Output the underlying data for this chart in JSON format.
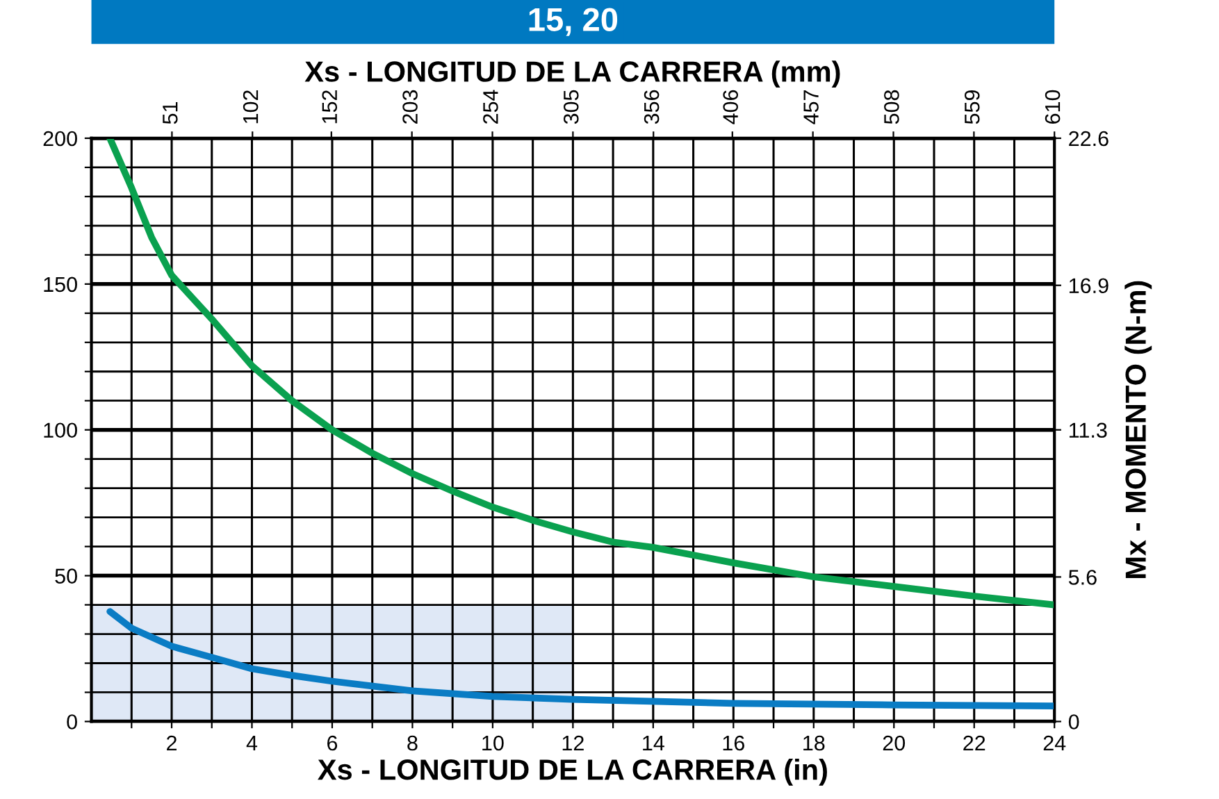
{
  "chart_data": {
    "type": "line",
    "title": "15, 20",
    "xlabel": "Xs - LONGITUD DE LA CARRERA (in)",
    "x2label": "Xs - LONGITUD DE LA CARRERA (mm)",
    "y2label": "Mx - MOMENTO (N-m)",
    "series": [
      {
        "type": "area",
        "color": "#dfe8f6",
        "x": [
          0,
          12
        ],
        "values": [
          40,
          40
        ]
      },
      {
        "color": "#0aa14f",
        "x": [
          0.46,
          1,
          1.5,
          2,
          3,
          4,
          5,
          6,
          7,
          8,
          9,
          10,
          11,
          12,
          13,
          14,
          16,
          18,
          20,
          22,
          24
        ],
        "values": [
          200,
          183,
          166,
          153,
          138,
          122,
          110,
          100,
          92,
          85,
          79,
          73.5,
          69,
          65,
          61.5,
          59.7,
          54.4,
          49.6,
          46.3,
          43,
          40
        ]
      },
      {
        "color": "#0a7cc4",
        "x": [
          0.46,
          1,
          2,
          3,
          4,
          5,
          6,
          8,
          10,
          12,
          16,
          20,
          24
        ],
        "values": [
          37.7,
          32,
          25.8,
          22,
          18.1,
          15.8,
          13.8,
          10.5,
          8.6,
          7.6,
          6.2,
          5.7,
          5.3
        ]
      }
    ],
    "xlim": [
      0,
      24
    ],
    "xticks": [
      {
        "value": 1,
        "label": null
      },
      2,
      {
        "value": 3,
        "label": null
      },
      4,
      {
        "value": 5,
        "label": null
      },
      6,
      {
        "value": 7,
        "label": null
      },
      8,
      {
        "value": 9,
        "label": null
      },
      10,
      {
        "value": 11,
        "label": null
      },
      12,
      {
        "value": 13,
        "label": null
      },
      14,
      {
        "value": 15,
        "label": null
      },
      16,
      {
        "value": 17,
        "label": null
      },
      18,
      {
        "value": 19,
        "label": null
      },
      20,
      {
        "value": 21,
        "label": null
      },
      22,
      {
        "value": 23,
        "label": null
      },
      24
    ],
    "ylim": [
      0,
      200
    ],
    "yticks": [
      0,
      {
        "value": 10,
        "label": null
      },
      {
        "value": 20,
        "label": null
      },
      {
        "value": 30,
        "label": null
      },
      {
        "value": 40,
        "label": null
      },
      50,
      {
        "value": 60,
        "label": null
      },
      {
        "value": 70,
        "label": null
      },
      {
        "value": 80,
        "label": null
      },
      {
        "value": 90,
        "label": null
      },
      100,
      {
        "value": 110,
        "label": null
      },
      {
        "value": 120,
        "label": null
      },
      {
        "value": 130,
        "label": null
      },
      {
        "value": 140,
        "label": null
      },
      150,
      {
        "value": 160,
        "label": null
      },
      {
        "value": 170,
        "label": null
      },
      {
        "value": 180,
        "label": null
      },
      {
        "value": 190,
        "label": null
      },
      200
    ],
    "x2lim": [
      0,
      610
    ],
    "x2ticks": [
      51,
      102,
      152,
      203,
      254,
      305,
      356,
      406,
      457,
      508,
      559,
      610
    ],
    "y2lim": [
      0,
      22.6
    ],
    "y2ticks": [
      0,
      5.6,
      11.3,
      16.9,
      22.6
    ],
    "grid": true
  }
}
